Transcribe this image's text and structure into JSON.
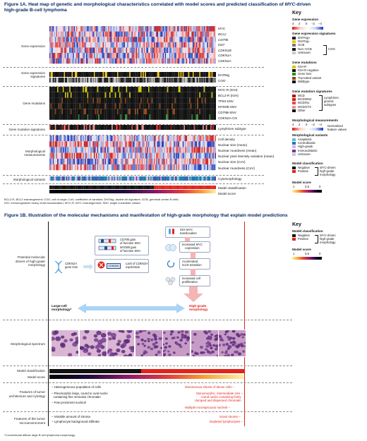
{
  "fig1a": {
    "title_line1_pre": "Figure 1A. Heat map of genetic and morphological characteristics correlated with model scores and predicted classification of ",
    "title_line1_it": "MYC",
    "title_line1_post": "-driven",
    "title_line2": "high-grade B-cell lymphoma",
    "groups": {
      "gene_expression": "Gene expression",
      "gene_expression_signatures": "Gene expression signatures",
      "gene_mutations": "Gene mutations",
      "gene_mutation_signatures": "Gene mutation signatures",
      "morphological_measurements": "Morphological measurements",
      "morphological_variants": "Morphological variants"
    },
    "row_labels": {
      "gene_expression": [
        "MYC",
        "BCL2",
        "CD79b",
        "Ki67",
        "CDKN1B",
        "CDKN1A",
        "CDKN2A"
      ],
      "gene_expression_signatures": [
        "DHITsig",
        "COO"
      ],
      "gene_mutations": [
        "MYC-R (IGH)",
        "BCL2-R (IGH)",
        "TP53-SNV",
        "MYD88-SNV",
        "CD79B-SNV",
        "CDKN2A-CN"
      ],
      "gene_mutation_signatures": [
        "LymphGen subtype"
      ],
      "morphological_measurements": [
        "Cell density",
        "Nuclear size (mean)",
        "Nuclear roundness (mean)",
        "Nuclear pixel intensity variation (mean)",
        "Nuclear size (CoV)",
        "Nuclear roundness (CoV)"
      ],
      "morphological_variants": [
        "Cytomorphology"
      ],
      "model": [
        "Model classification",
        "Model score"
      ]
    },
    "footnote_line1": "BCL2-R, BCL2 rearrangement; COO, cell of origin; CoV, coefficient of variation; DHITsig, double-hit signature; GCB, germinal center B cells;",
    "footnote_line2": "IGH, immunoglobulin heavy chain translocation; MYC-R, MYC rearrangement; SNV, single nucleotide variant."
  },
  "key_a": {
    "title": "Key",
    "gene_expression": {
      "title": "Gene expression",
      "ticks": [
        "4",
        "2",
        "0",
        "−2",
        "−4"
      ]
    },
    "gene_expression_signatures": {
      "title": "Gene expression signatures",
      "items": [
        {
          "label": "DHITsig+",
          "color": "#222222"
        },
        {
          "label": "DHITsig−",
          "color": "#f2c200"
        },
        {
          "label": "GCB",
          "color": "#7a7a7a"
        },
        {
          "label": "Non−GCB",
          "color": "#1a1a1a"
        },
        {
          "label": "Unknown",
          "color": "#c9c9c9"
        }
      ],
      "bracket_label": "COO"
    },
    "gene_mutations": {
      "title": "Gene mutations",
      "items": [
        {
          "label": "IGH-R",
          "color": "#d4c800"
        },
        {
          "label": "IGH-R negative",
          "color": "#111111"
        },
        {
          "label": "Gene loss",
          "color": "#2e8b2e"
        },
        {
          "label": "Truncated variant",
          "color": "#8b4513"
        },
        {
          "label": "Wildtype",
          "color": "#111111"
        }
      ]
    },
    "gene_mutation_signatures": {
      "title": "Gene mutation signatures",
      "items": [
        {
          "label": "MCD",
          "color": "#b01010"
        },
        {
          "label": "MCD/BN2",
          "color": "#d21d1d"
        },
        {
          "label": "MCD/N1",
          "color": "#e84a4a"
        },
        {
          "label": "MCD/ST2",
          "color": "#f28c8c"
        },
        {
          "label": "Other",
          "color": "#111111"
        }
      ],
      "bracket_label_1": "LymphGen",
      "bracket_label_2": "genetic",
      "bracket_label_3": "subtypes"
    },
    "morphological_measurements": {
      "title": "Morphological measurements",
      "ticks": [
        "4",
        "2",
        "0",
        "−2",
        "−4"
      ],
      "side_1": "Normalized",
      "side_2": "feature values"
    },
    "morphological_variants": {
      "title": "Morphological variants",
      "items": [
        {
          "label": "Anaplastic",
          "color": "#58c1d6"
        },
        {
          "label": "Centroblastic",
          "color": "#1f78b4"
        },
        {
          "label": "High-grade",
          "color": "#d4b0e6"
        },
        {
          "label": "Immunoblastic",
          "color": "#7b2fa8"
        },
        {
          "label": "Unknown",
          "color": "#c9c9c9"
        }
      ]
    },
    "model_classification": {
      "title": "Model classification",
      "items": [
        {
          "label": "Negative",
          "color": "#111111"
        },
        {
          "label": "Positive",
          "color": "#e2231a"
        }
      ],
      "side_1_it": "MYC",
      "side_1": "-driven",
      "side_2": "high-grade",
      "side_3": "morphology"
    },
    "model_score": {
      "title": "Model score",
      "ticks": [
        "1",
        "0.5",
        "0"
      ]
    }
  },
  "fig1b": {
    "title": "Figure 1B. Illustration of the molecular mechanisms and manifestation of high-grade morphology that explain model predictions",
    "left_labels": {
      "drivers_1": "Potential molecular",
      "drivers_2": "drivers of high-grade",
      "drivers_3": "morphology",
      "spectrum": "Morphological spectrum",
      "classification": "Model classification",
      "score": "Model score",
      "tumor_1": "Features of tumor",
      "tumor_2": "architecture and cytology",
      "micro_1": "Features of the tumor",
      "micro_2": "microenvironment"
    },
    "mechanisms": {
      "cd79b_it": "CD79b",
      "cd79b_rest": " gain",
      "of_function_1": "of function SNV",
      "myd88_it": "MYD88",
      "myd88_rest": " gain",
      "of_function_2": "of function SNV",
      "cdkn2a_it": "CDKN2A",
      "cdkn2a_rest_1": "gene loss",
      "cdkn2a_chip": "CDKN2A",
      "lack_1": "Lack of ",
      "lack_it": "CDKN2A",
      "lack_2": "expression",
      "igh_1": "IGH-",
      "igh_it": "MYC",
      "igh_2": "translocation",
      "inc_myc_1": "Increased ",
      "inc_myc_it": "MYC",
      "inc_myc_2": "expression",
      "accel_1": "Accelerated",
      "accel_2": "G1/S transition",
      "prolif_1": "Increased cell",
      "prolif_2": "proliferation"
    },
    "large_cell_1": "Large-cell",
    "large_cell_2": "morphology*",
    "high_grade_1": "High-grade",
    "high_grade_2": "morphology",
    "left_features": [
      "Heterogeneous population of cells",
      "Pleomorphic large, round to oval nuclei",
      "containing fine vesicular chromatin",
      "Few prominent nucleoli"
    ],
    "right_features": [
      "Monotonous sheets of dense cells",
      "Monomorphic, intermediate size",
      "round nuclei containing finely",
      "clumped and dispersed chromatin",
      "Multiple inconspicuous nucleoli"
    ],
    "left_micro": [
      "Variable amount of stroma",
      "Lymphocyte background infiltrate"
    ],
    "right_micro": [
      "Scant stroma",
      "Depleted lymphocytes"
    ],
    "footnote": "*Conventional diffuse large B cell lymphoma morphology."
  },
  "key_b": {
    "title": "Key",
    "classification_title": "Model classification",
    "items": [
      {
        "label": "Negative",
        "color": "#111111"
      },
      {
        "label": "Positive",
        "color": "#e2231a"
      }
    ],
    "side_it": "MYC",
    "side_1": "-driven",
    "side_2": "high-grade",
    "side_3": "morphology",
    "score_title": "Model score",
    "ticks": [
      "1",
      "0.5",
      "0"
    ]
  },
  "colors": {
    "title": "#0a2a66",
    "positive": "#e2231a",
    "negative": "#111111",
    "arrow": "#a9d4f5"
  }
}
